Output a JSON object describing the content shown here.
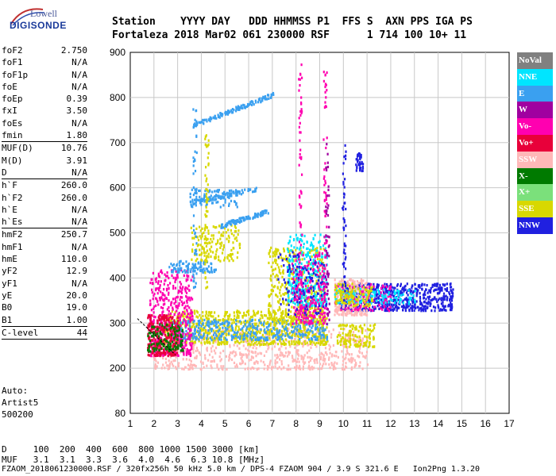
{
  "logo": {
    "top": "Lowell",
    "bottom": "DIGISONDE"
  },
  "header": {
    "line1": "Station    YYYY DAY   DDD HHMMSS P1  FFS S  AXN PPS IGA PS",
    "line2": "Fortaleza 2018 Mar02 061 230000 RSF      1 714 100 10+ 11"
  },
  "params": [
    {
      "k": "foF2",
      "v": "2.750"
    },
    {
      "k": "foF1",
      "v": "N/A"
    },
    {
      "k": "foF1p",
      "v": "N/A"
    },
    {
      "k": "foE",
      "v": "N/A"
    },
    {
      "k": "foEp",
      "v": "0.39"
    },
    {
      "k": "fxI",
      "v": "3.50"
    },
    {
      "k": "foEs",
      "v": "N/A"
    },
    {
      "k": "fmin",
      "v": "1.80"
    },
    {
      "k": "MUF(D)",
      "v": "10.76",
      "sep": true
    },
    {
      "k": "M(D)",
      "v": "3.91"
    },
    {
      "k": "D",
      "v": "N/A"
    },
    {
      "k": "h`F",
      "v": "260.0",
      "sep": true
    },
    {
      "k": "h`F2",
      "v": "260.0"
    },
    {
      "k": "h`E",
      "v": "N/A"
    },
    {
      "k": "h`Es",
      "v": "N/A"
    },
    {
      "k": "hmF2",
      "v": "250.7",
      "sep": true
    },
    {
      "k": "hmF1",
      "v": "N/A"
    },
    {
      "k": "hmE",
      "v": "110.0"
    },
    {
      "k": "yF2",
      "v": "12.9"
    },
    {
      "k": "yF1",
      "v": "N/A"
    },
    {
      "k": "yE",
      "v": "20.0"
    },
    {
      "k": "B0",
      "v": "19.0"
    },
    {
      "k": "B1",
      "v": "1.00"
    },
    {
      "k": "C-level",
      "v": "44",
      "sep": true
    }
  ],
  "auto_note": [
    "Auto:",
    "Artist5",
    "500200"
  ],
  "bottom": {
    "d_line": "D     100  200  400  600  800 1000 1500 3000 [km]",
    "muf_line": "MUF   3.1  3.1  3.3  3.6  4.0  4.6  6.3 10.8 [MHz]",
    "footer": "FZAOM_2018061230000.RSF / 320fx256h 50 kHz 5.0 km / DPS-4 FZAOM 904 / 3.9 S 321.6 E   Ion2Png 1.3.20"
  },
  "chart_data": {
    "type": "scatter",
    "title": "",
    "xlabel": "",
    "ylabel": "",
    "xlim": [
      1,
      17
    ],
    "ylim": [
      80,
      900
    ],
    "x_ticks": [
      1,
      2,
      3,
      4,
      5,
      6,
      7,
      8,
      9,
      10,
      11,
      12,
      13,
      14,
      15,
      16,
      17
    ],
    "y_ticks": [
      80,
      200,
      300,
      400,
      500,
      600,
      700,
      800,
      900
    ],
    "grid": true,
    "legend": [
      {
        "name": "NoVal",
        "color": "#808080"
      },
      {
        "name": "NNE",
        "color": "#00e5ff"
      },
      {
        "name": "E",
        "color": "#3aa0f0"
      },
      {
        "name": "W",
        "color": "#a000a0"
      },
      {
        "name": "Vo-",
        "color": "#ff00b0"
      },
      {
        "name": "Vo+",
        "color": "#e8003a"
      },
      {
        "name": "SSW",
        "color": "#ffb8b8"
      },
      {
        "name": "X-",
        "color": "#007a00"
      },
      {
        "name": "X+",
        "color": "#7be07b"
      },
      {
        "name": "SSE",
        "color": "#d8d800"
      },
      {
        "name": "NNW",
        "color": "#2020e0"
      }
    ],
    "regions": [
      {
        "series": "SSW",
        "x": [
          1.9,
          11.0
        ],
        "y": [
          200,
          290
        ],
        "n": 700
      },
      {
        "series": "SSE",
        "x": [
          2.4,
          9.3
        ],
        "y": [
          255,
          330
        ],
        "n": 800
      },
      {
        "series": "E",
        "x": [
          2.6,
          9.3
        ],
        "y": [
          265,
          310
        ],
        "n": 400
      },
      {
        "series": "Vo-",
        "x": [
          1.8,
          3.6
        ],
        "y": [
          230,
          420
        ],
        "n": 450
      },
      {
        "series": "Vo+",
        "x": [
          1.7,
          3.0
        ],
        "y": [
          230,
          320
        ],
        "n": 250
      },
      {
        "series": "X-",
        "x": [
          1.7,
          3.2
        ],
        "y": [
          240,
          300
        ],
        "n": 120
      },
      {
        "series": "SSE",
        "x": [
          6.8,
          9.2
        ],
        "y": [
          300,
          470
        ],
        "n": 400
      },
      {
        "series": "NNE",
        "x": [
          7.6,
          9.3
        ],
        "y": [
          340,
          500
        ],
        "n": 300
      },
      {
        "series": "Vo-",
        "x": [
          7.8,
          9.2
        ],
        "y": [
          300,
          460
        ],
        "n": 200
      },
      {
        "series": "NNW",
        "x": [
          7.2,
          9.3
        ],
        "y": [
          320,
          460
        ],
        "n": 120
      },
      {
        "series": "NNW",
        "x": [
          9.8,
          14.6
        ],
        "y": [
          330,
          390
        ],
        "n": 650
      },
      {
        "series": "SSW",
        "x": [
          9.6,
          11.0
        ],
        "y": [
          320,
          400
        ],
        "n": 250
      },
      {
        "series": "Vo-",
        "x": [
          9.6,
          12.0
        ],
        "y": [
          330,
          390
        ],
        "n": 120
      },
      {
        "series": "NNE",
        "x": [
          9.6,
          13.0
        ],
        "y": [
          345,
          380
        ],
        "n": 120
      },
      {
        "series": "SSE",
        "x": [
          9.6,
          11.2
        ],
        "y": [
          340,
          390
        ],
        "n": 120
      },
      {
        "series": "E",
        "x": [
          2.6,
          4.6
        ],
        "y": [
          415,
          440
        ],
        "n": 100
      },
      {
        "series": "E",
        "x": [
          3.5,
          5.5
        ],
        "y": [
          560,
          600
        ],
        "n": 80
      },
      {
        "series": "SSE",
        "x": [
          3.5,
          5.6
        ],
        "y": [
          440,
          520
        ],
        "n": 150
      },
      {
        "series": "SSE",
        "x": [
          9.7,
          11.3
        ],
        "y": [
          250,
          300
        ],
        "n": 120
      },
      {
        "series": "NNW",
        "x": [
          10.5,
          10.8
        ],
        "y": [
          640,
          680
        ],
        "n": 40
      }
    ],
    "traces": [
      {
        "series": "E",
        "x": [
          3.6,
          7.1
        ],
        "y": [
          740,
          810
        ],
        "n": 140
      },
      {
        "series": "E",
        "x": [
          4.8,
          6.8
        ],
        "y": [
          518,
          550
        ],
        "n": 100
      },
      {
        "series": "E",
        "x": [
          3.6,
          6.3
        ],
        "y": [
          570,
          600
        ],
        "n": 80
      }
    ],
    "columns": [
      {
        "series": "Vo-",
        "x": 8.15,
        "y": [
          300,
          880
        ],
        "n": 70
      },
      {
        "series": "Vo-",
        "x": 9.2,
        "y": [
          300,
          870
        ],
        "n": 60
      },
      {
        "series": "W",
        "x": 9.3,
        "y": [
          300,
          700
        ],
        "n": 50
      },
      {
        "series": "NNW",
        "x": 10.0,
        "y": [
          330,
          700
        ],
        "n": 50
      },
      {
        "series": "E",
        "x": 3.7,
        "y": [
          380,
          780
        ],
        "n": 50
      },
      {
        "series": "SSE",
        "x": 4.2,
        "y": [
          380,
          720
        ],
        "n": 50
      }
    ],
    "hand_trace": {
      "x": [
        1.3,
        2.1,
        2.9
      ],
      "y": [
        310,
        270,
        230
      ]
    }
  }
}
